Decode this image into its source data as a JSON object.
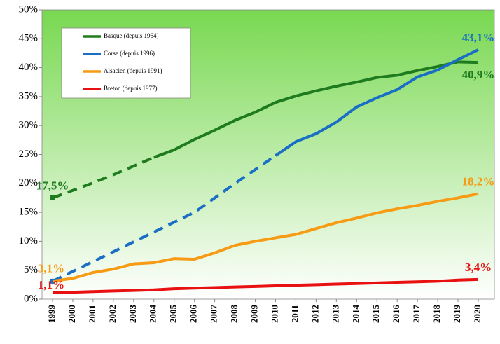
{
  "chart_data": {
    "type": "line",
    "categories": [
      "1999",
      "2000",
      "2001",
      "2002",
      "2003",
      "2004",
      "2005",
      "2006",
      "2007",
      "2008",
      "2009",
      "2010",
      "2011",
      "2012",
      "2013",
      "2014",
      "2015",
      "2016",
      "2017",
      "2018",
      "2019",
      "2020"
    ],
    "ylim": [
      0,
      50
    ],
    "yticks": [
      {
        "value": 0,
        "label": "0%"
      },
      {
        "value": 5,
        "label": "5%"
      },
      {
        "value": 10,
        "label": "10%"
      },
      {
        "value": 15,
        "label": "15%"
      },
      {
        "value": 20,
        "label": "20%"
      },
      {
        "value": 25,
        "label": "25%"
      },
      {
        "value": 30,
        "label": "30%"
      },
      {
        "value": 35,
        "label": "35%"
      },
      {
        "value": 40,
        "label": "40%"
      },
      {
        "value": 45,
        "label": "45%"
      },
      {
        "value": 50,
        "label": "50%"
      }
    ],
    "series": [
      {
        "name": "Basque (depuis 1964)",
        "color": "#1e7b1e",
        "dashed_until": "2004",
        "values": [
          17.5,
          18.8,
          20.1,
          21.5,
          23.0,
          24.5,
          25.8,
          27.6,
          29.2,
          30.9,
          32.3,
          34.0,
          35.1,
          36.0,
          36.8,
          37.5,
          38.3,
          38.7,
          39.5,
          40.2,
          41.0,
          40.9
        ],
        "value_labels": [
          "17,5%",
          null,
          null,
          null,
          null,
          null,
          null,
          null,
          null,
          null,
          null,
          null,
          null,
          null,
          null,
          null,
          null,
          null,
          null,
          null,
          null,
          "40,9%"
        ]
      },
      {
        "name": "Corse (depuis 1996)",
        "color": "#1a6fc4",
        "dashed_until": "2010",
        "values": [
          3.1,
          4.8,
          6.5,
          8.2,
          9.9,
          11.6,
          13.3,
          15.0,
          17.5,
          20.0,
          22.4,
          24.8,
          27.2,
          28.6,
          30.6,
          33.2,
          34.8,
          36.2,
          38.4,
          39.6,
          41.4,
          43.1
        ],
        "value_labels": [
          null,
          null,
          null,
          null,
          null,
          null,
          null,
          null,
          null,
          null,
          null,
          null,
          null,
          null,
          null,
          null,
          null,
          null,
          null,
          null,
          null,
          "43,1%"
        ]
      },
      {
        "name": "Alsacien (depuis 1991)",
        "color": "#f79a14",
        "values": [
          3.1,
          3.6,
          4.6,
          5.2,
          6.1,
          6.3,
          7.0,
          6.9,
          8.0,
          9.3,
          10.0,
          10.6,
          11.2,
          12.2,
          13.2,
          14.0,
          14.9,
          15.6,
          16.2,
          16.9,
          17.5,
          18.2
        ],
        "value_labels": [
          "3,1%",
          null,
          null,
          null,
          null,
          null,
          null,
          null,
          null,
          null,
          null,
          null,
          null,
          null,
          null,
          null,
          null,
          null,
          null,
          null,
          null,
          "18,2%"
        ]
      },
      {
        "name": "Breton (depuis 1977)",
        "color": "#e81010",
        "values": [
          1.1,
          1.2,
          1.3,
          1.4,
          1.5,
          1.6,
          1.8,
          1.9,
          2.0,
          2.1,
          2.2,
          2.3,
          2.4,
          2.5,
          2.6,
          2.7,
          2.8,
          2.9,
          3.0,
          3.1,
          3.3,
          3.4
        ],
        "value_labels": [
          "1,1%",
          null,
          null,
          null,
          null,
          null,
          null,
          null,
          null,
          null,
          null,
          null,
          null,
          null,
          null,
          null,
          null,
          null,
          null,
          null,
          null,
          "3,4%"
        ]
      }
    ],
    "legend": "upper left",
    "grid": false
  }
}
